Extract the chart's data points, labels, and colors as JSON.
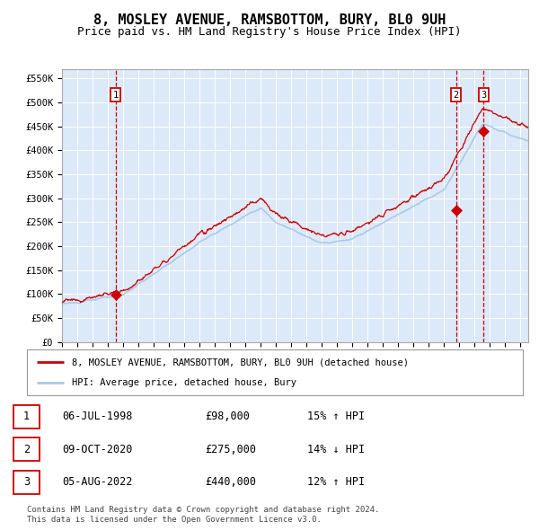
{
  "title": "8, MOSLEY AVENUE, RAMSBOTTOM, BURY, BL0 9UH",
  "subtitle": "Price paid vs. HM Land Registry's House Price Index (HPI)",
  "title_fontsize": 11,
  "subtitle_fontsize": 9,
  "xlim": [
    1995.0,
    2025.5
  ],
  "ylim": [
    0,
    570000
  ],
  "yticks": [
    0,
    50000,
    100000,
    150000,
    200000,
    250000,
    300000,
    350000,
    400000,
    450000,
    500000,
    550000
  ],
  "ytick_labels": [
    "£0",
    "£50K",
    "£100K",
    "£150K",
    "£200K",
    "£250K",
    "£300K",
    "£350K",
    "£400K",
    "£450K",
    "£500K",
    "£550K"
  ],
  "plot_bg_color": "#dce9f9",
  "grid_color": "#ffffff",
  "hpi_line_color": "#a8c8e8",
  "price_line_color": "#cc0000",
  "sale_marker_color": "#cc0000",
  "dashed_line_color": "#cc0000",
  "annotation_box_color": "#cc0000",
  "sales": [
    {
      "date_year": 1998.51,
      "price": 98000,
      "label": "1"
    },
    {
      "date_year": 2020.77,
      "price": 275000,
      "label": "2"
    },
    {
      "date_year": 2022.59,
      "price": 440000,
      "label": "3"
    }
  ],
  "legend_label_price": "8, MOSLEY AVENUE, RAMSBOTTOM, BURY, BL0 9UH (detached house)",
  "legend_label_hpi": "HPI: Average price, detached house, Bury",
  "table_rows": [
    {
      "num": "1",
      "date": "06-JUL-1998",
      "price": "£98,000",
      "hpi": "15% ↑ HPI"
    },
    {
      "num": "2",
      "date": "09-OCT-2020",
      "price": "£275,000",
      "hpi": "14% ↓ HPI"
    },
    {
      "num": "3",
      "date": "05-AUG-2022",
      "price": "£440,000",
      "hpi": "12% ↑ HPI"
    }
  ],
  "footnote": "Contains HM Land Registry data © Crown copyright and database right 2024.\nThis data is licensed under the Open Government Licence v3.0.",
  "xticks": [
    1995,
    1996,
    1997,
    1998,
    1999,
    2000,
    2001,
    2002,
    2003,
    2004,
    2005,
    2006,
    2007,
    2008,
    2009,
    2010,
    2011,
    2012,
    2013,
    2014,
    2015,
    2016,
    2017,
    2018,
    2019,
    2020,
    2021,
    2022,
    2023,
    2024,
    2025
  ]
}
